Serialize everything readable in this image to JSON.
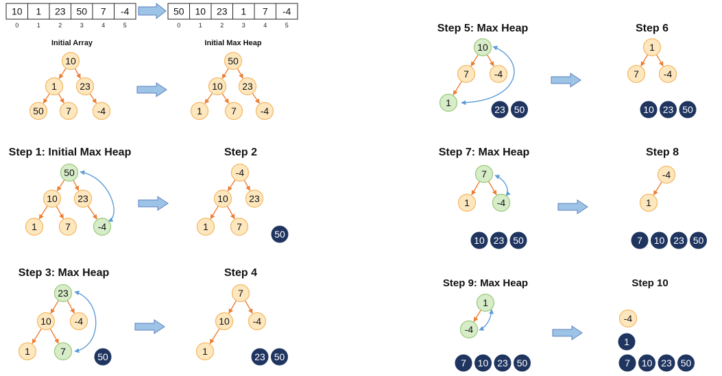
{
  "arrays": {
    "initial": {
      "values": [
        "10",
        "1",
        "23",
        "50",
        "7",
        "-4"
      ],
      "indices": [
        "0",
        "1",
        "2",
        "3",
        "4",
        "5"
      ]
    },
    "heap": {
      "values": [
        "50",
        "10",
        "23",
        "1",
        "7",
        "-4"
      ],
      "indices": [
        "0",
        "1",
        "2",
        "3",
        "4",
        "5"
      ]
    }
  },
  "titles": {
    "initial_array": "Initial Array",
    "initial_max_heap": "Initial Max Heap",
    "s1": "Step 1: Initial Max Heap",
    "s2": "Step 2",
    "s3": "Step 3: Max Heap",
    "s4": "Step 4",
    "s5": "Step 5: Max Heap",
    "s6": "Step 6",
    "s7": "Step 7: Max Heap",
    "s8": "Step 8",
    "s9": "Step 9: Max Heap",
    "s10": "Step 10"
  },
  "trees": {
    "initial": [
      "10",
      "1",
      "23",
      "50",
      "7",
      "-4"
    ],
    "initial_heap": [
      "50",
      "10",
      "23",
      "1",
      "7",
      "-4"
    ],
    "s1": [
      "50",
      "10",
      "23",
      "1",
      "7",
      "-4"
    ],
    "s2": [
      "-4",
      "10",
      "23",
      "1",
      "7"
    ],
    "s3": [
      "23",
      "10",
      "-4",
      "1",
      "7"
    ],
    "s4": [
      "7",
      "10",
      "-4",
      "1"
    ],
    "s5": [
      "10",
      "7",
      "-4",
      "1"
    ],
    "s6": [
      "1",
      "7",
      "-4"
    ],
    "s7": [
      "7",
      "1",
      "-4"
    ],
    "s8": [
      "-4",
      "1"
    ],
    "s9": [
      "1",
      "-4"
    ],
    "s10": [
      "-4"
    ]
  },
  "sorted": {
    "s2": [
      "50"
    ],
    "s3": [
      "50"
    ],
    "s4": [
      "23",
      "50"
    ],
    "s5": [
      "23",
      "50"
    ],
    "s6": [
      "10",
      "23",
      "50"
    ],
    "s7": [
      "10",
      "23",
      "50"
    ],
    "s8": [
      "7",
      "10",
      "23",
      "50"
    ],
    "s9": [
      "7",
      "10",
      "23",
      "50"
    ],
    "s10_top": [
      "1"
    ],
    "s10_bottom": [
      "7",
      "10",
      "23",
      "50"
    ]
  },
  "colors": {
    "node_fill": "#fde7bf",
    "node_stroke": "#f5b966",
    "swap_fill": "#d7ecc8",
    "swap_stroke": "#9ccb7e",
    "sorted_fill": "#1f3560",
    "edge": "#ed7d31",
    "swap_arrow": "#5b9bd5",
    "block_arrow_fill": "#9dc3e6",
    "block_arrow_stroke": "#5b7fbd"
  }
}
